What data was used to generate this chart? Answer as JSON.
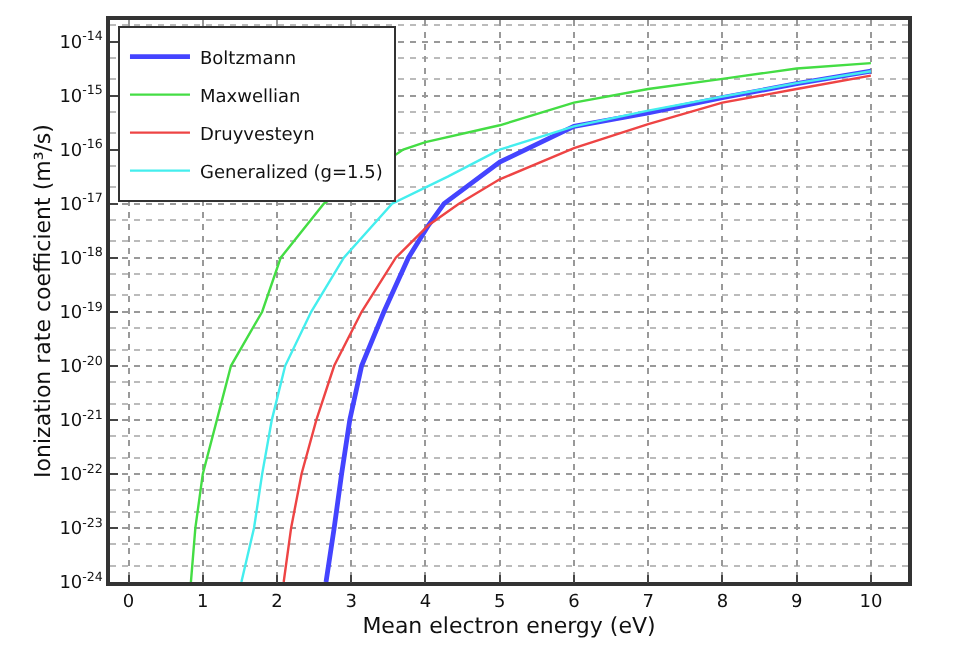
{
  "chart_data": {
    "type": "line",
    "xlabel": "Mean electron energy (eV)",
    "ylabel": "Ionization rate coefficient (m³/s)",
    "log": "y",
    "grid": true,
    "legend": "top left",
    "marker": "none",
    "line_style": "solid",
    "xlim": [
      -0.25,
      10.5
    ],
    "xticks": [
      0,
      1,
      2,
      3,
      4,
      5,
      6,
      7,
      8,
      9,
      10
    ],
    "ylim": [
      1e-24,
      2.5e-14
    ],
    "yticks": [
      {
        "value": 1e-24,
        "label": "10$^{-24}$"
      },
      {
        "value": 1e-23,
        "label": "10$^{-23}$"
      },
      {
        "value": 1e-22,
        "label": "10$^{-22}$"
      },
      {
        "value": 1e-21,
        "label": "10$^{-21}$"
      },
      {
        "value": 1e-20,
        "label": "10$^{-20}$"
      },
      {
        "value": 1e-19,
        "label": "10$^{-19}$"
      },
      {
        "value": 1e-18,
        "label": "10$^{-18}$"
      },
      {
        "value": 1e-17,
        "label": "10$^{-17}$"
      },
      {
        "value": 1e-16,
        "label": "10$^{-16}$"
      },
      {
        "value": 1e-15,
        "label": "10$^{-15}$"
      },
      {
        "value": 1e-14,
        "label": "10$^{-14}$"
      }
    ],
    "series": [
      {
        "name": "Boltzmann",
        "color": "#4444ff",
        "x": [
          2.66,
          2.77,
          2.87,
          2.98,
          3.14,
          3.44,
          3.77,
          4.04,
          4.25,
          5,
          6,
          7,
          8,
          9,
          10
        ],
        "values": [
          1e-24,
          1e-23,
          1e-22,
          1e-21,
          1e-20,
          1e-19,
          1e-18,
          3.98e-18,
          1e-17,
          5.89e-17,
          2.69e-16,
          4.79e-16,
          9.12e-16,
          1.66e-15,
          2.82e-15
        ]
      },
      {
        "name": "Maxwellian",
        "color": "#44dd44",
        "x": [
          0.84,
          0.9,
          1.0,
          1.19,
          1.38,
          1.8,
          2.05,
          2.63,
          3.7,
          4,
          5,
          6,
          7,
          8,
          9,
          10
        ],
        "values": [
          1e-24,
          1e-23,
          1e-22,
          1e-21,
          1e-20,
          1e-19,
          1e-18,
          1e-17,
          1e-16,
          1.38e-16,
          2.82e-16,
          7.41e-16,
          1.32e-15,
          2.04e-15,
          3.16e-15,
          3.98e-15
        ]
      },
      {
        "name": "Druyvesteyn",
        "color": "#ee4444",
        "x": [
          2.09,
          2.19,
          2.33,
          2.53,
          2.77,
          3.14,
          3.6,
          4.04,
          4.45,
          5,
          6,
          7,
          8,
          9,
          10
        ],
        "values": [
          1e-24,
          1e-23,
          1e-22,
          1e-21,
          1e-20,
          1e-19,
          1e-18,
          3.98e-18,
          1e-17,
          2.82e-17,
          1.07e-16,
          2.95e-16,
          7.41e-16,
          1.32e-15,
          2.34e-15
        ]
      },
      {
        "name": "Generalized (g=1.5)",
        "color": "#44eeee",
        "x": [
          1.52,
          1.69,
          1.8,
          1.93,
          2.11,
          2.46,
          2.9,
          3.55,
          4.3,
          5,
          6,
          7,
          8,
          9,
          10
        ],
        "values": [
          1e-24,
          1e-23,
          1e-22,
          1e-21,
          1e-20,
          1e-19,
          1e-18,
          1e-17,
          3.16e-17,
          1e-16,
          2.69e-16,
          5.25e-16,
          9.55e-16,
          1.7e-15,
          2.82e-15
        ]
      }
    ]
  }
}
